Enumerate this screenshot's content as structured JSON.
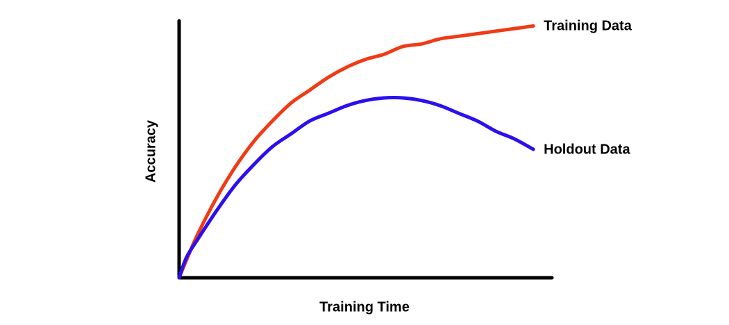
{
  "chart_data": {
    "type": "line",
    "x_label": "Training Time",
    "y_label": "Accuracy",
    "xlim": [
      0,
      100
    ],
    "ylim": [
      0,
      100
    ],
    "x": [
      0,
      2,
      5,
      10,
      15,
      20,
      25,
      30,
      35,
      40,
      45,
      50,
      55,
      60,
      65,
      70,
      75,
      80,
      85,
      90,
      95
    ],
    "series": [
      {
        "name": "Training Data",
        "color": "#ef3b16",
        "values": [
          0,
          7,
          17,
          31,
          43,
          53,
          61,
          68,
          73,
          78,
          82,
          85,
          87,
          90,
          91,
          93,
          94,
          95,
          96,
          97,
          98
        ]
      },
      {
        "name": "Holdout Data",
        "color": "#2b10ef",
        "values": [
          0,
          8,
          15,
          26,
          36,
          44,
          51,
          56,
          61,
          64,
          67,
          69,
          70,
          70,
          69,
          67,
          64,
          61,
          57,
          54,
          50
        ]
      }
    ]
  }
}
